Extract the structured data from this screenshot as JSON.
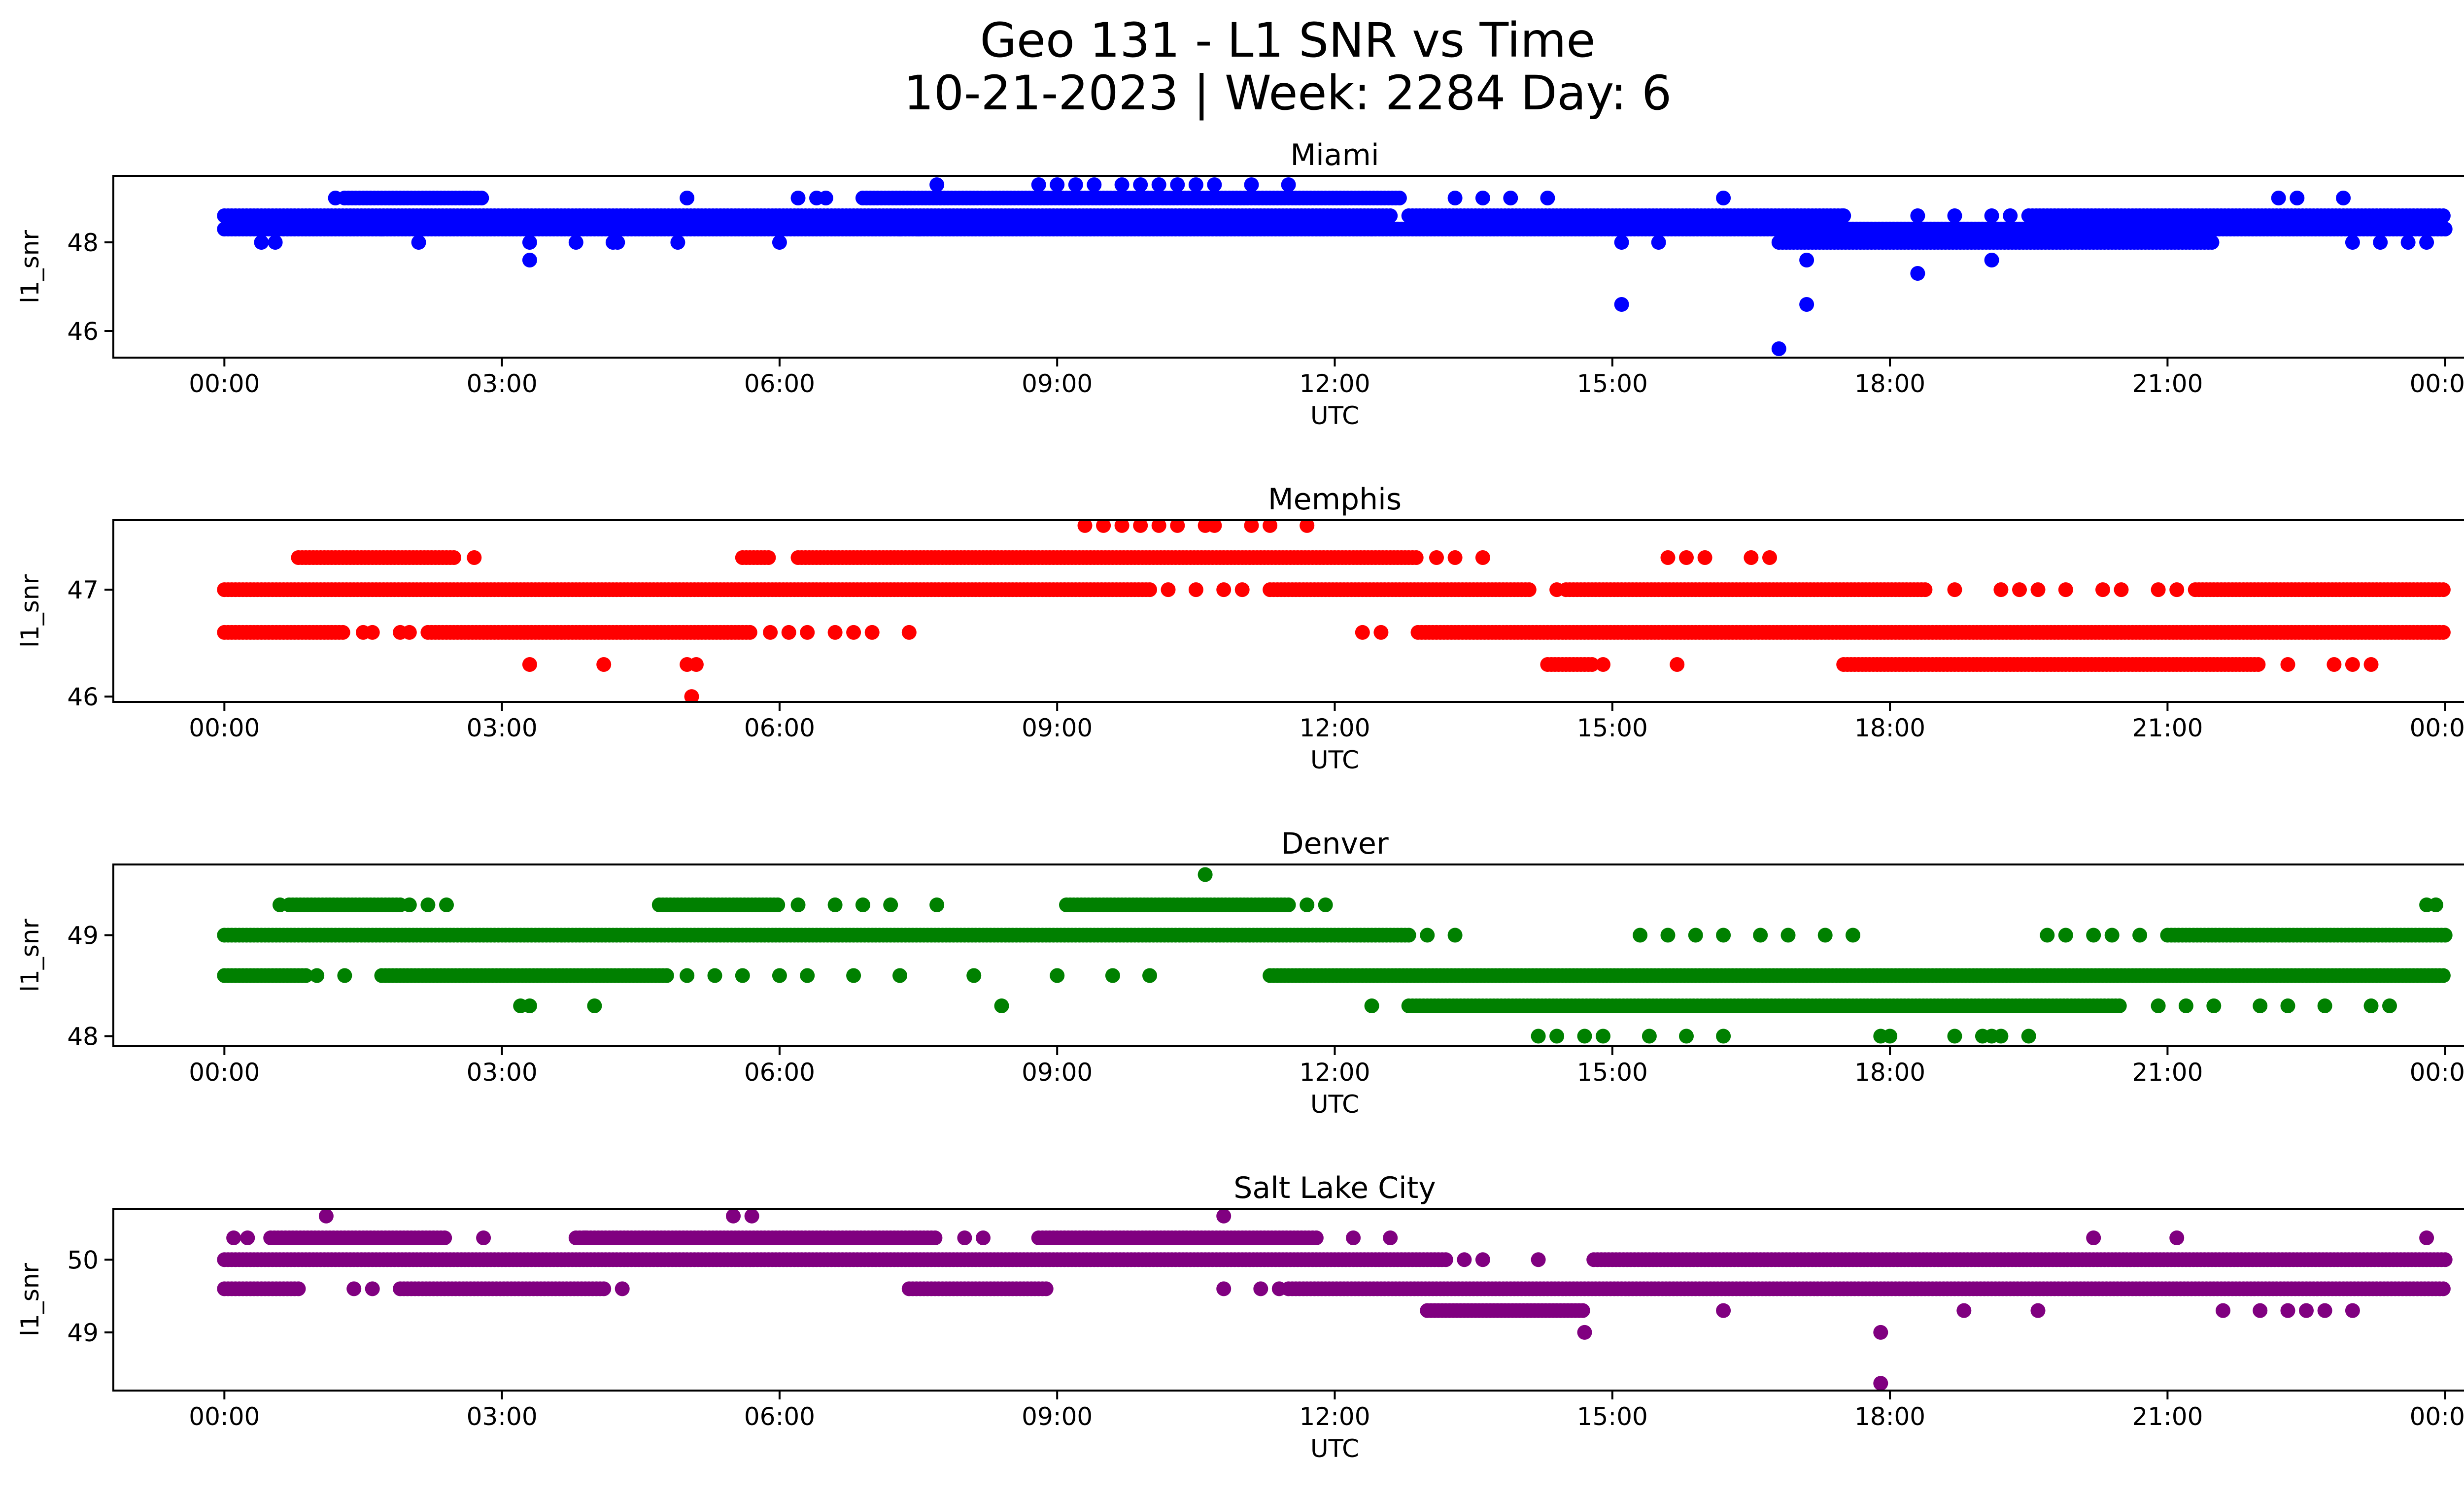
{
  "figure": {
    "title_line1": "Geo 131 - L1 SNR vs Time",
    "title_line2": "10-21-2023 | Week: 2284 Day: 6"
  },
  "chart_data": [
    {
      "type": "scatter",
      "title": "Miami",
      "xlabel": "UTC",
      "ylabel": "l1_snr",
      "color": "#0000ff",
      "x_ticks": [
        "00:00",
        "03:00",
        "06:00",
        "09:00",
        "12:00",
        "15:00",
        "18:00",
        "21:00",
        "00:00"
      ],
      "x_range_hours": [
        -1.2,
        25.2
      ],
      "ylim": [
        45.4,
        49.5
      ],
      "y_ticks": [
        46,
        48
      ],
      "levels": [
        {
          "y": 48.3,
          "ranges": [
            [
              0.0,
              24.0
            ]
          ]
        },
        {
          "y": 48.6,
          "ranges": [
            [
              0.0,
              12.6
            ],
            [
              12.8,
              17.5
            ],
            [
              19.5,
              24.0
            ]
          ]
        },
        {
          "y": 49.0,
          "ranges": [
            [
              1.3,
              2.8
            ],
            [
              6.9,
              12.7
            ]
          ]
        },
        {
          "y": 48.0,
          "ranges": [
            [
              16.8,
              21.5
            ]
          ]
        }
      ],
      "points": [
        [
          1.2,
          49.0
        ],
        [
          5.0,
          49.0
        ],
        [
          6.2,
          49.0
        ],
        [
          6.4,
          49.0
        ],
        [
          6.5,
          49.0
        ],
        [
          13.3,
          49.0
        ],
        [
          13.6,
          49.0
        ],
        [
          13.9,
          49.0
        ],
        [
          14.3,
          49.0
        ],
        [
          16.2,
          49.0
        ],
        [
          22.2,
          49.0
        ],
        [
          22.4,
          49.0
        ],
        [
          22.9,
          49.0
        ],
        [
          7.7,
          49.3
        ],
        [
          8.8,
          49.3
        ],
        [
          9.0,
          49.3
        ],
        [
          9.2,
          49.3
        ],
        [
          9.4,
          49.3
        ],
        [
          9.7,
          49.3
        ],
        [
          9.9,
          49.3
        ],
        [
          10.1,
          49.3
        ],
        [
          10.3,
          49.3
        ],
        [
          10.5,
          49.3
        ],
        [
          10.7,
          49.3
        ],
        [
          11.1,
          49.3
        ],
        [
          11.5,
          49.3
        ],
        [
          0.4,
          48.0
        ],
        [
          0.55,
          48.0
        ],
        [
          2.1,
          48.0
        ],
        [
          3.3,
          48.0
        ],
        [
          3.8,
          48.0
        ],
        [
          4.2,
          48.0
        ],
        [
          4.25,
          48.0
        ],
        [
          4.9,
          48.0
        ],
        [
          6.0,
          48.0
        ],
        [
          15.1,
          48.0
        ],
        [
          15.5,
          48.0
        ],
        [
          23.0,
          48.0
        ],
        [
          23.3,
          48.0
        ],
        [
          23.6,
          48.0
        ],
        [
          23.8,
          48.0
        ],
        [
          1.7,
          48.3
        ],
        [
          2.1,
          48.3
        ],
        [
          7.3,
          48.3
        ],
        [
          7.5,
          48.3
        ],
        [
          12.4,
          48.3
        ],
        [
          17.5,
          48.6
        ],
        [
          18.3,
          48.6
        ],
        [
          18.7,
          48.6
        ],
        [
          19.1,
          48.6
        ],
        [
          19.3,
          48.6
        ],
        [
          3.3,
          47.6
        ],
        [
          17.1,
          47.6
        ],
        [
          19.1,
          47.6
        ],
        [
          18.3,
          47.3
        ],
        [
          15.1,
          46.6
        ],
        [
          17.1,
          46.6
        ],
        [
          16.8,
          45.6
        ]
      ]
    },
    {
      "type": "scatter",
      "title": "Memphis",
      "xlabel": "UTC",
      "ylabel": "l1_snr",
      "color": "#ff0000",
      "x_ticks": [
        "00:00",
        "03:00",
        "06:00",
        "09:00",
        "12:00",
        "15:00",
        "18:00",
        "21:00",
        "00:00"
      ],
      "x_range_hours": [
        -1.2,
        25.2
      ],
      "ylim": [
        45.95,
        47.65
      ],
      "y_ticks": [
        46,
        47
      ],
      "levels": [
        {
          "y": 47.0,
          "ranges": [
            [
              0.0,
              10.0
            ],
            [
              11.3,
              14.1
            ],
            [
              14.5,
              18.4
            ],
            [
              21.3,
              24.0
            ]
          ]
        },
        {
          "y": 46.6,
          "ranges": [
            [
              0.0,
              1.3
            ],
            [
              2.2,
              5.7
            ],
            [
              12.9,
              24.0
            ]
          ]
        },
        {
          "y": 47.3,
          "ranges": [
            [
              0.8,
              2.5
            ],
            [
              5.6,
              5.9
            ],
            [
              6.2,
              12.9
            ]
          ]
        },
        {
          "y": 46.3,
          "ranges": [
            [
              14.3,
              14.8
            ],
            [
              17.5,
              22.0
            ]
          ]
        }
      ],
      "points": [
        [
          1.5,
          46.6
        ],
        [
          1.6,
          46.6
        ],
        [
          1.9,
          46.6
        ],
        [
          2.0,
          46.6
        ],
        [
          5.9,
          46.6
        ],
        [
          6.1,
          46.6
        ],
        [
          6.3,
          46.6
        ],
        [
          6.6,
          46.6
        ],
        [
          6.8,
          46.6
        ],
        [
          7.0,
          46.6
        ],
        [
          7.4,
          46.6
        ],
        [
          12.3,
          46.6
        ],
        [
          12.5,
          46.6
        ],
        [
          10.2,
          47.0
        ],
        [
          10.5,
          47.0
        ],
        [
          10.8,
          47.0
        ],
        [
          11.0,
          47.0
        ],
        [
          14.4,
          47.0
        ],
        [
          18.7,
          47.0
        ],
        [
          19.2,
          47.0
        ],
        [
          19.4,
          47.0
        ],
        [
          19.6,
          47.0
        ],
        [
          19.9,
          47.0
        ],
        [
          20.3,
          47.0
        ],
        [
          20.5,
          47.0
        ],
        [
          20.9,
          47.0
        ],
        [
          21.1,
          47.0
        ],
        [
          2.7,
          47.3
        ],
        [
          13.1,
          47.3
        ],
        [
          13.3,
          47.3
        ],
        [
          13.6,
          47.3
        ],
        [
          15.6,
          47.3
        ],
        [
          15.8,
          47.3
        ],
        [
          16.0,
          47.3
        ],
        [
          16.5,
          47.3
        ],
        [
          16.7,
          47.3
        ],
        [
          9.3,
          47.6
        ],
        [
          9.5,
          47.6
        ],
        [
          9.7,
          47.6
        ],
        [
          9.9,
          47.6
        ],
        [
          10.1,
          47.6
        ],
        [
          10.3,
          47.6
        ],
        [
          10.6,
          47.6
        ],
        [
          10.7,
          47.6
        ],
        [
          11.1,
          47.6
        ],
        [
          11.3,
          47.6
        ],
        [
          11.7,
          47.6
        ],
        [
          3.3,
          46.3
        ],
        [
          4.1,
          46.3
        ],
        [
          5.0,
          46.3
        ],
        [
          5.1,
          46.3
        ],
        [
          14.9,
          46.3
        ],
        [
          15.7,
          46.3
        ],
        [
          22.3,
          46.3
        ],
        [
          22.8,
          46.3
        ],
        [
          23.0,
          46.3
        ],
        [
          23.2,
          46.3
        ],
        [
          5.05,
          46.0
        ]
      ]
    },
    {
      "type": "scatter",
      "title": "Denver",
      "xlabel": "UTC",
      "ylabel": "l1_snr",
      "color": "#008000",
      "x_ticks": [
        "00:00",
        "03:00",
        "06:00",
        "09:00",
        "12:00",
        "15:00",
        "18:00",
        "21:00",
        "00:00"
      ],
      "x_range_hours": [
        -1.2,
        25.2
      ],
      "ylim": [
        47.9,
        49.7
      ],
      "y_ticks": [
        48,
        49
      ],
      "levels": [
        {
          "y": 49.0,
          "ranges": [
            [
              0.0,
              12.8
            ],
            [
              21.0,
              24.0
            ]
          ]
        },
        {
          "y": 48.6,
          "ranges": [
            [
              0.0,
              0.9
            ],
            [
              1.7,
              4.8
            ],
            [
              11.3,
              24.0
            ]
          ]
        },
        {
          "y": 48.3,
          "ranges": [
            [
              12.8,
              20.5
            ]
          ]
        },
        {
          "y": 49.3,
          "ranges": [
            [
              0.7,
              1.9
            ],
            [
              4.7,
              6.0
            ],
            [
              9.1,
              11.5
            ]
          ]
        }
      ],
      "points": [
        [
          0.6,
          49.3
        ],
        [
          2.0,
          49.3
        ],
        [
          2.2,
          49.3
        ],
        [
          2.4,
          49.3
        ],
        [
          6.2,
          49.3
        ],
        [
          6.6,
          49.3
        ],
        [
          6.9,
          49.3
        ],
        [
          7.2,
          49.3
        ],
        [
          7.7,
          49.3
        ],
        [
          11.7,
          49.3
        ],
        [
          11.9,
          49.3
        ],
        [
          23.8,
          49.3
        ],
        [
          23.9,
          49.3
        ],
        [
          13.0,
          49.0
        ],
        [
          13.3,
          49.0
        ],
        [
          15.3,
          49.0
        ],
        [
          15.6,
          49.0
        ],
        [
          15.9,
          49.0
        ],
        [
          16.2,
          49.0
        ],
        [
          16.6,
          49.0
        ],
        [
          16.9,
          49.0
        ],
        [
          17.3,
          49.0
        ],
        [
          17.6,
          49.0
        ],
        [
          19.7,
          49.0
        ],
        [
          19.9,
          49.0
        ],
        [
          20.2,
          49.0
        ],
        [
          20.4,
          49.0
        ],
        [
          20.7,
          49.0
        ],
        [
          1.0,
          48.6
        ],
        [
          1.3,
          48.6
        ],
        [
          5.0,
          48.6
        ],
        [
          5.3,
          48.6
        ],
        [
          5.6,
          48.6
        ],
        [
          6.0,
          48.6
        ],
        [
          6.3,
          48.6
        ],
        [
          6.8,
          48.6
        ],
        [
          7.3,
          48.6
        ],
        [
          8.1,
          48.6
        ],
        [
          9.0,
          48.6
        ],
        [
          9.6,
          48.6
        ],
        [
          10.0,
          48.6
        ],
        [
          3.2,
          48.3
        ],
        [
          3.3,
          48.3
        ],
        [
          4.0,
          48.3
        ],
        [
          8.4,
          48.3
        ],
        [
          12.4,
          48.3
        ],
        [
          20.9,
          48.3
        ],
        [
          21.2,
          48.3
        ],
        [
          21.5,
          48.3
        ],
        [
          22.0,
          48.3
        ],
        [
          22.3,
          48.3
        ],
        [
          22.7,
          48.3
        ],
        [
          23.2,
          48.3
        ],
        [
          23.4,
          48.3
        ],
        [
          14.2,
          48.0
        ],
        [
          14.4,
          48.0
        ],
        [
          14.7,
          48.0
        ],
        [
          14.9,
          48.0
        ],
        [
          15.4,
          48.0
        ],
        [
          15.8,
          48.0
        ],
        [
          16.2,
          48.0
        ],
        [
          17.9,
          48.0
        ],
        [
          18.0,
          48.0
        ],
        [
          18.7,
          48.0
        ],
        [
          19.0,
          48.0
        ],
        [
          19.1,
          48.0
        ],
        [
          19.2,
          48.0
        ],
        [
          19.5,
          48.0
        ],
        [
          10.6,
          49.6
        ]
      ]
    },
    {
      "type": "scatter",
      "title": "Salt Lake City",
      "xlabel": "UTC",
      "ylabel": "l1_snr",
      "color": "#800080",
      "x_ticks": [
        "00:00",
        "03:00",
        "06:00",
        "09:00",
        "12:00",
        "15:00",
        "18:00",
        "21:00",
        "00:00"
      ],
      "x_range_hours": [
        -1.2,
        25.2
      ],
      "ylim": [
        48.2,
        50.7
      ],
      "y_ticks": [
        49,
        50
      ],
      "levels": [
        {
          "y": 50.0,
          "ranges": [
            [
              0.0,
              13.2
            ],
            [
              14.8,
              24.0
            ]
          ]
        },
        {
          "y": 49.6,
          "ranges": [
            [
              0.0,
              0.8
            ],
            [
              1.9,
              4.1
            ],
            [
              7.4,
              8.9
            ],
            [
              11.5,
              24.0
            ]
          ]
        },
        {
          "y": 50.3,
          "ranges": [
            [
              0.5,
              2.4
            ],
            [
              3.8,
              7.7
            ],
            [
              8.8,
              11.8
            ]
          ]
        },
        {
          "y": 49.3,
          "ranges": [
            [
              13.0,
              14.7
            ]
          ]
        }
      ],
      "points": [
        [
          0.1,
          50.3
        ],
        [
          0.25,
          50.3
        ],
        [
          2.8,
          50.3
        ],
        [
          3.9,
          50.3
        ],
        [
          8.0,
          50.3
        ],
        [
          8.2,
          50.3
        ],
        [
          12.2,
          50.3
        ],
        [
          12.6,
          50.3
        ],
        [
          20.2,
          50.3
        ],
        [
          21.1,
          50.3
        ],
        [
          23.8,
          50.3
        ],
        [
          1.1,
          50.6
        ],
        [
          5.5,
          50.6
        ],
        [
          5.7,
          50.6
        ],
        [
          10.8,
          50.6
        ],
        [
          13.4,
          50.0
        ],
        [
          13.6,
          50.0
        ],
        [
          14.2,
          50.0
        ],
        [
          1.4,
          49.6
        ],
        [
          1.6,
          49.6
        ],
        [
          4.3,
          49.6
        ],
        [
          10.8,
          49.6
        ],
        [
          11.2,
          49.6
        ],
        [
          11.4,
          49.6
        ],
        [
          16.2,
          49.3
        ],
        [
          18.8,
          49.3
        ],
        [
          19.6,
          49.3
        ],
        [
          21.6,
          49.3
        ],
        [
          22.0,
          49.3
        ],
        [
          22.3,
          49.3
        ],
        [
          22.5,
          49.3
        ],
        [
          22.7,
          49.3
        ],
        [
          23.0,
          49.3
        ],
        [
          14.7,
          49.0
        ],
        [
          17.9,
          49.0
        ],
        [
          17.9,
          48.3
        ]
      ]
    }
  ]
}
